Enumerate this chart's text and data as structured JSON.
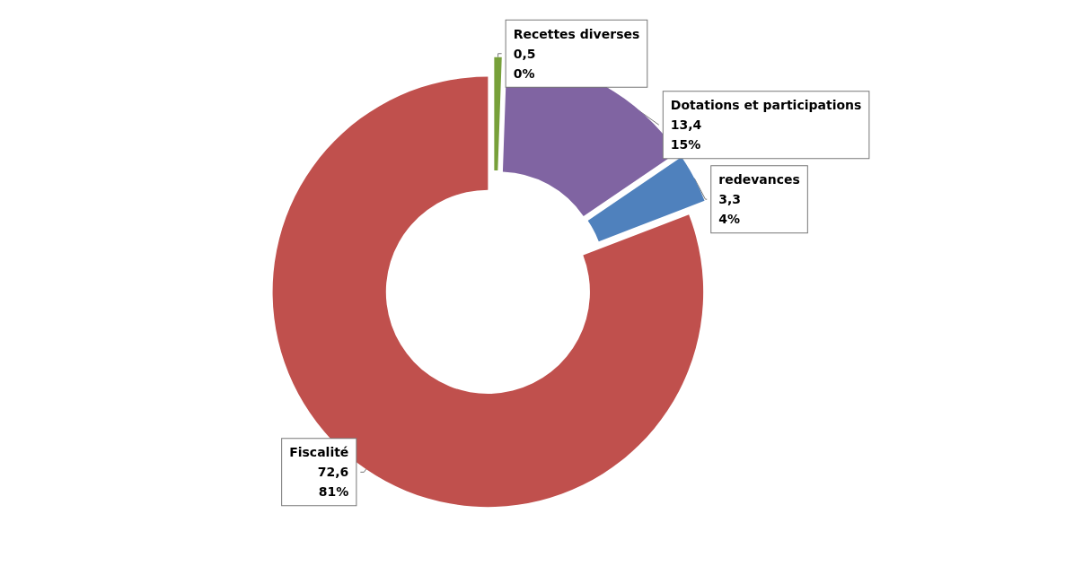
{
  "chart_data": {
    "type": "donut",
    "categories": [
      "Recettes diverses",
      "Dotations et participations",
      "redevances",
      "Fiscalité"
    ],
    "values": [
      0.5,
      13.4,
      3.3,
      72.6
    ],
    "colors": [
      "#77a03a",
      "#8064a2",
      "#4f81bd",
      "#c0504d"
    ],
    "value_labels": [
      "0,5\n0%",
      "13,4\n15%",
      "3,3\n4%",
      "72,6\n81%"
    ]
  }
}
